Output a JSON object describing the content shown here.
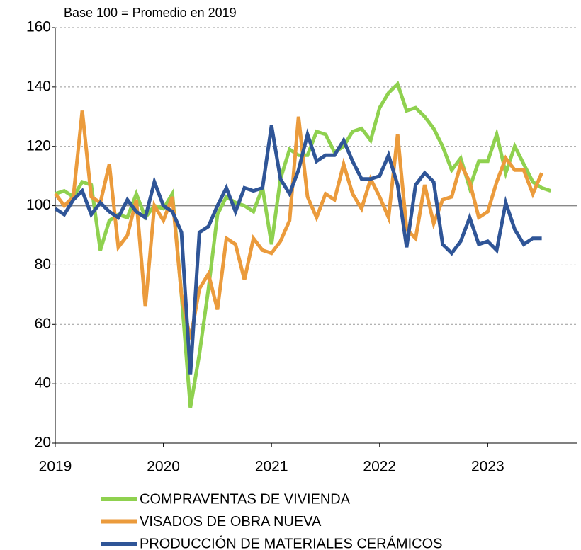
{
  "chart_data": {
    "type": "line",
    "subtitle": "Base 100 = Promedio en 2019",
    "x": [
      2019,
      2019.083,
      2019.167,
      2019.25,
      2019.333,
      2019.417,
      2019.5,
      2019.583,
      2019.667,
      2019.75,
      2019.833,
      2019.917,
      2020,
      2020.083,
      2020.167,
      2020.25,
      2020.333,
      2020.417,
      2020.5,
      2020.583,
      2020.667,
      2020.75,
      2020.833,
      2020.917,
      2021,
      2021.083,
      2021.167,
      2021.25,
      2021.333,
      2021.417,
      2021.5,
      2021.583,
      2021.667,
      2021.75,
      2021.833,
      2021.917,
      2022,
      2022.083,
      2022.167,
      2022.25,
      2022.333,
      2022.417,
      2022.5,
      2022.583,
      2022.667,
      2022.75,
      2022.833,
      2022.917,
      2023,
      2023.083,
      2023.167,
      2023.25,
      2023.333,
      2023.417,
      2023.5,
      2023.583
    ],
    "series": [
      {
        "name": "COMPRAVENTAS DE VIVIENDA",
        "color": "#8fd14f",
        "values": [
          104,
          105,
          103,
          108,
          107,
          85,
          95,
          97,
          96,
          104,
          96,
          100,
          99,
          104,
          70,
          32,
          50,
          72,
          97,
          103,
          101,
          100,
          98,
          106,
          87,
          109,
          119,
          117,
          117,
          125,
          124,
          118,
          120,
          125,
          126,
          122,
          133,
          138,
          141,
          132,
          133,
          130,
          126,
          120,
          112,
          116,
          106,
          115,
          115,
          124,
          111,
          120,
          114,
          108,
          106,
          105
        ]
      },
      {
        "name": "VISADOS DE OBRA NUEVA",
        "color": "#eb9b3c",
        "values": [
          104,
          100,
          103,
          132,
          103,
          101,
          114,
          86,
          90,
          102,
          66,
          100,
          95,
          103,
          70,
          55,
          72,
          77,
          65,
          89,
          87,
          75,
          89,
          85,
          84,
          88,
          95,
          130,
          103,
          96,
          104,
          102,
          114,
          104,
          99,
          109,
          103,
          96,
          124,
          92,
          89,
          107,
          94,
          102,
          103,
          114,
          108,
          96,
          98,
          108,
          116,
          112,
          112,
          104,
          111,
          null
        ]
      },
      {
        "name": "PRODUCCIÓN DE MATERIALES CERÁMICOS",
        "color": "#2f5597",
        "values": [
          99,
          97,
          102,
          105,
          97,
          101,
          98,
          96,
          102,
          98,
          96,
          108,
          100,
          98,
          91,
          43,
          91,
          93,
          100,
          106,
          98,
          106,
          105,
          106,
          127,
          109,
          104,
          112,
          124,
          115,
          117,
          117,
          122,
          115,
          109,
          109,
          110,
          117,
          107,
          86,
          107,
          111,
          108,
          87,
          84,
          88,
          96,
          87,
          88,
          85,
          101,
          92,
          87,
          89,
          89,
          null
        ]
      }
    ],
    "xlim": [
      2019,
      2023.83
    ],
    "xticks": [
      2019,
      2020,
      2021,
      2022,
      2023
    ],
    "ylim": [
      20,
      160
    ],
    "yticks": [
      20,
      40,
      60,
      80,
      100,
      120,
      140,
      160
    ],
    "grid": true,
    "legend": "bottom"
  }
}
